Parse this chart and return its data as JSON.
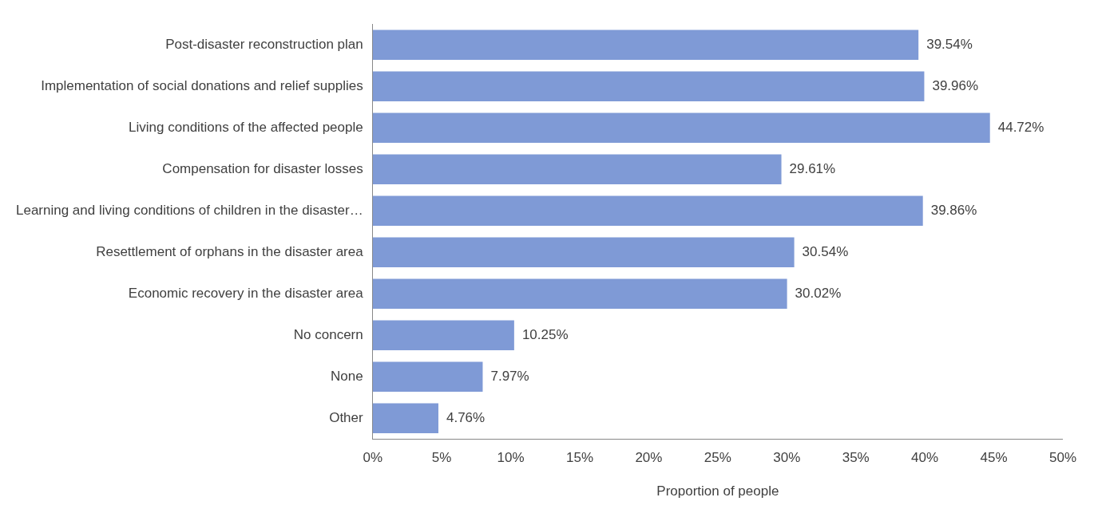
{
  "chart_data": {
    "type": "bar",
    "orientation": "horizontal",
    "xlabel": "Proportion of people",
    "categories": [
      "Post-disaster reconstruction plan",
      "Implementation of social donations and relief supplies",
      "Living conditions of the affected people",
      "Compensation for disaster losses",
      "Learning and living conditions of children in the disaster…",
      "Resettlement of orphans in the disaster area",
      "Economic recovery in the disaster area",
      "No concern",
      "None",
      "Other"
    ],
    "values": [
      39.54,
      39.96,
      44.72,
      29.61,
      39.86,
      30.54,
      30.02,
      10.25,
      7.97,
      4.76
    ],
    "value_labels": [
      "39.54%",
      "39.96%",
      "44.72%",
      "29.61%",
      "39.86%",
      "30.54%",
      "30.02%",
      "10.25%",
      "7.97%",
      "4.76%"
    ],
    "color": "#7f9ad6",
    "xlim": [
      0,
      50
    ],
    "xticks": [
      {
        "value": 0,
        "label": "0%"
      },
      {
        "value": 5,
        "label": "5%"
      },
      {
        "value": 10,
        "label": "10%"
      },
      {
        "value": 15,
        "label": "15%"
      },
      {
        "value": 20,
        "label": "20%"
      },
      {
        "value": 25,
        "label": "25%"
      },
      {
        "value": 30,
        "label": "30%"
      },
      {
        "value": 35,
        "label": "35%"
      },
      {
        "value": 40,
        "label": "40%"
      },
      {
        "value": 45,
        "label": "45%"
      },
      {
        "value": 50,
        "label": "50%"
      }
    ],
    "grid": false,
    "legend": false
  }
}
